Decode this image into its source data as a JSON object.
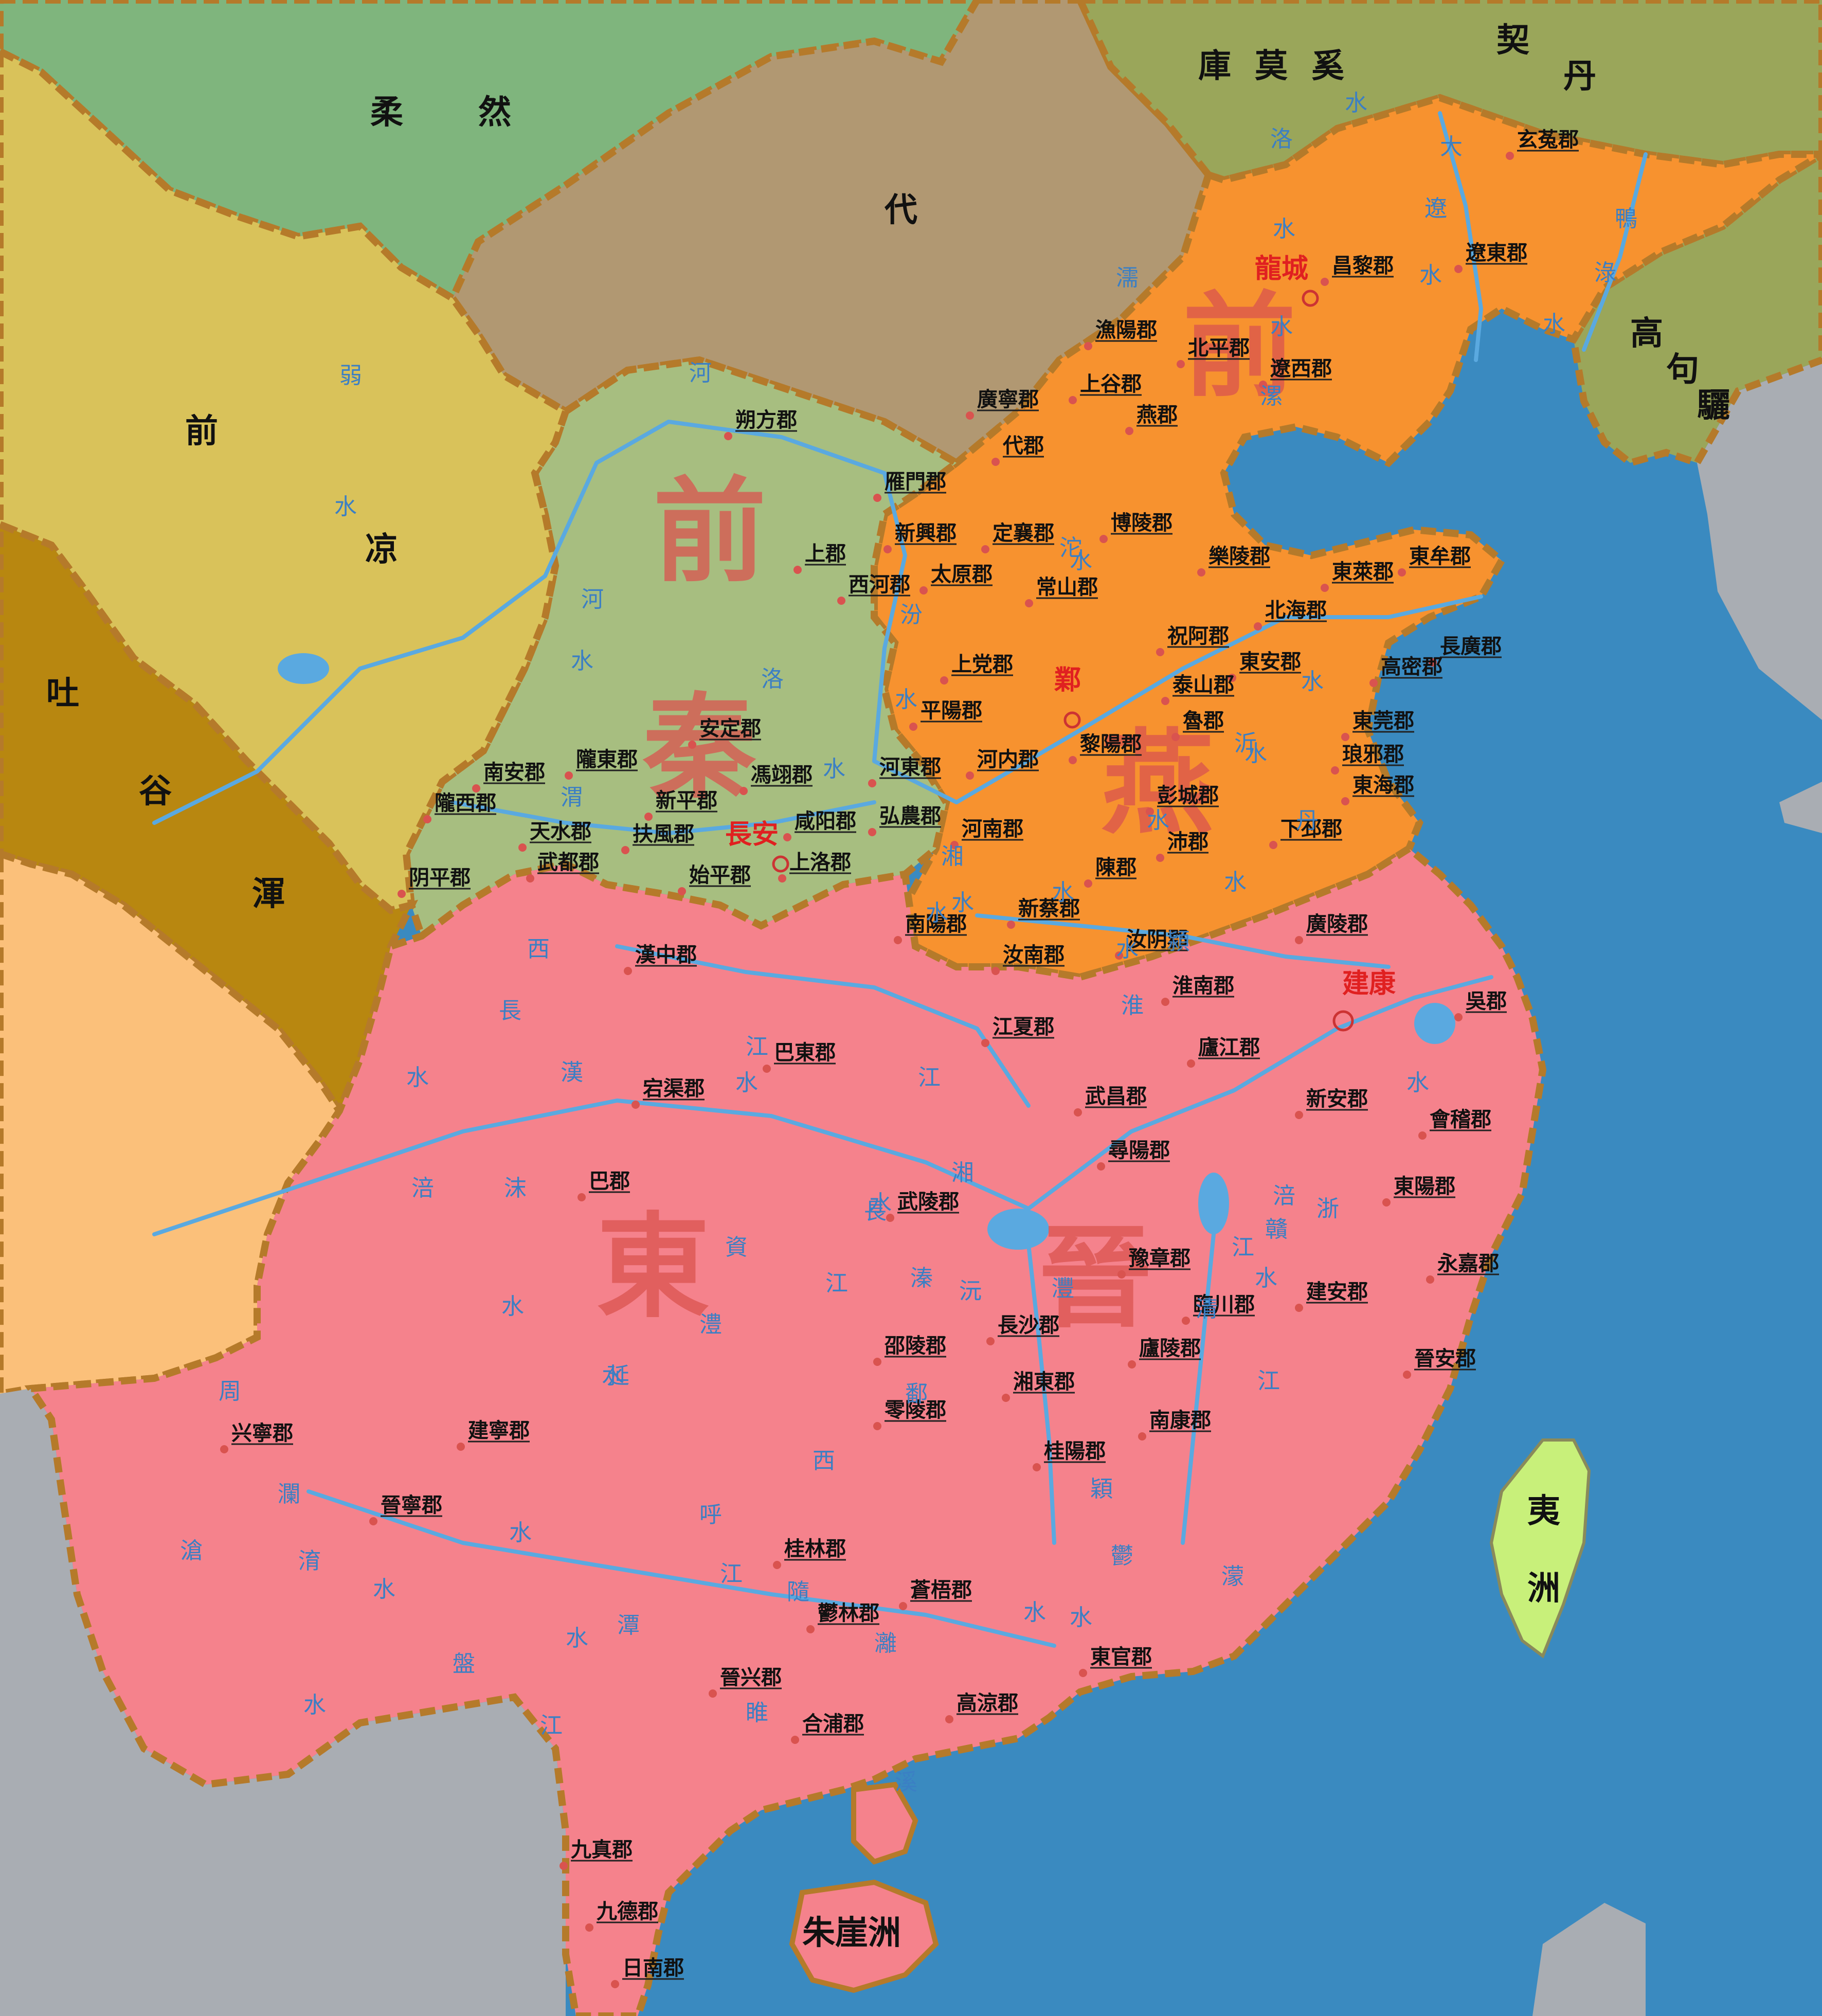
{
  "colors": {
    "sea": "#3a8ac0",
    "eastern_jin": "#f5828c",
    "former_qin": "#a7be80",
    "former_yan": "#f7922f",
    "former_liang": "#d9c25a",
    "tuyuhun": "#b88710",
    "rouran": "#7fb57d",
    "dai": "#b19872",
    "kumoxi": "#9aa65a",
    "goguryeo": "#9aa65a",
    "southwest": "#fbc07a",
    "foreign": "#a9adb3",
    "yizhou": "#c8f07a",
    "border": "#b57a2a",
    "river": "#5aa9e0"
  },
  "states": {
    "qin_a": "前",
    "qin_b": "秦",
    "yan_a": "前",
    "yan_b": "燕",
    "jin_a": "東",
    "jin_b": "晉"
  },
  "kingdoms": {
    "rouran_a": "柔",
    "rouran_b": "然",
    "dai": "代",
    "kumoxi_a": "庫",
    "kumoxi_b": "莫",
    "kumoxi_c": "奚",
    "khitan_a": "契",
    "khitan_b": "丹",
    "goguryeo_a": "高",
    "goguryeo_b": "句",
    "goguryeo_c": "驪",
    "liang_a": "前",
    "liang_b": "凉",
    "tuyuhun_a": "吐",
    "tuyuhun_b": "谷",
    "tuyuhun_c": "渾",
    "yizhou_a": "夷",
    "yizhou_b": "洲",
    "zhuyazhou": "朱崖洲"
  },
  "capitals": {
    "changan": "長安",
    "ye": "鄴",
    "longcheng": "龍城",
    "jiankang": "建康"
  },
  "commanderies": [
    "朔方郡",
    "上郡",
    "西河郡",
    "雁門郡",
    "新興郡",
    "太原郡",
    "定襄郡",
    "常山郡",
    "代郡",
    "廣寧郡",
    "上谷郡",
    "燕郡",
    "漁陽郡",
    "北平郡",
    "遼西郡",
    "昌黎郡",
    "遼東郡",
    "玄菟郡",
    "博陵郡",
    "樂陵郡",
    "東萊郡",
    "東牟郡",
    "長廣郡",
    "高密郡",
    "北海郡",
    "祝阿郡",
    "東安郡",
    "泰山郡",
    "魯郡",
    "東莞郡",
    "琅邪郡",
    "東海郡",
    "黎陽郡",
    "彭城郡",
    "下邳郡",
    "沛郡",
    "上党郡",
    "平陽郡",
    "河東郡",
    "河内郡",
    "弘農郡",
    "河南郡",
    "陳郡",
    "新蔡郡",
    "汝南郡",
    "汝阴郡",
    "南陽郡",
    "安定郡",
    "隴東郡",
    "南安郡",
    "隴西郡",
    "天水郡",
    "新平郡",
    "馮翊郡",
    "咸阳郡",
    "扶風郡",
    "武都郡",
    "始平郡",
    "上洛郡",
    "阴平郡",
    "漢中郡",
    "廣陵郡",
    "淮南郡",
    "吳郡",
    "廬江郡",
    "巴東郡",
    "宕渠郡",
    "江夏郡",
    "武昌郡",
    "新安郡",
    "會稽郡",
    "尋陽郡",
    "東陽郡",
    "巴郡",
    "武陵郡",
    "豫章郡",
    "永嘉郡",
    "臨川郡",
    "建安郡",
    "長沙郡",
    "邵陵郡",
    "廬陵郡",
    "晉安郡",
    "湘東郡",
    "零陵郡",
    "南康郡",
    "兴寧郡",
    "建寧郡",
    "桂陽郡",
    "晉寧郡",
    "桂林郡",
    "蒼梧郡",
    "鬱林郡",
    "東官郡",
    "晉兴郡",
    "高涼郡",
    "合浦郡",
    "九真郡",
    "九德郡",
    "日南郡"
  ],
  "rivers": [
    "河",
    "弱",
    "水",
    "河",
    "水",
    "洛",
    "水",
    "渭",
    "汾",
    "水",
    "濡",
    "水",
    "沱",
    "水",
    "洛",
    "水",
    "大",
    "遼",
    "水",
    "鴨",
    "淥",
    "水",
    "漯",
    "水",
    "淮",
    "水",
    "漢",
    "江",
    "西",
    "長",
    "水",
    "涪",
    "沫",
    "水",
    "江",
    "長",
    "江",
    "灃",
    "沅",
    "水",
    "湘",
    "資",
    "澧",
    "水",
    "延",
    "江",
    "涪",
    "水",
    "贛",
    "水",
    "浙",
    "江",
    "鄱",
    "水",
    "呼",
    "水",
    "盤",
    "江",
    "西",
    "隨",
    "灕",
    "水",
    "潭",
    "鬱",
    "水",
    "溱",
    "水",
    "淯",
    "滄",
    "瀾",
    "周",
    "江",
    "水",
    "溪",
    "濛",
    "水",
    "穎",
    "水",
    "睢",
    "水",
    "潁",
    "水",
    "清",
    "水",
    "丹",
    "水",
    "湘",
    "水",
    "水",
    "沂",
    "泗",
    "水"
  ]
}
